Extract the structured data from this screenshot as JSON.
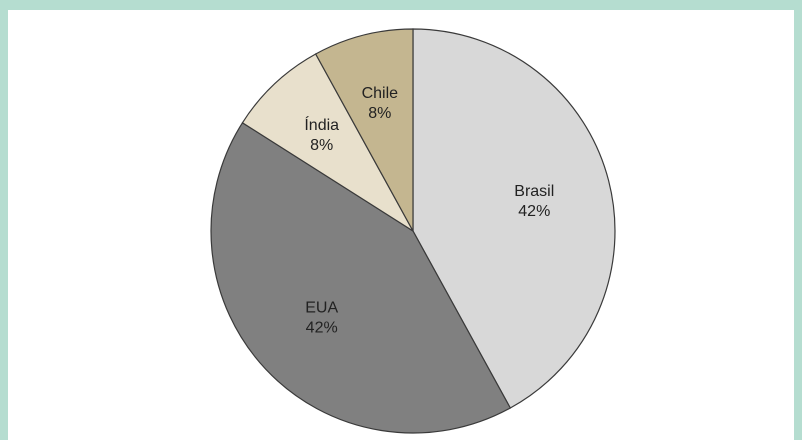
{
  "chart_data": {
    "type": "pie",
    "slices": [
      {
        "label": "Brasil",
        "value": 42,
        "value_text": "42%",
        "color": "#d8d8d8"
      },
      {
        "label": "EUA",
        "value": 42,
        "value_text": "42%",
        "color": "#808080"
      },
      {
        "label": "Índia",
        "value": 8,
        "value_text": "8%",
        "color": "#e8e0cc"
      },
      {
        "label": "Chile",
        "value": 8,
        "value_text": "8%",
        "color": "#c4b690"
      }
    ],
    "start": "top",
    "direction": "clockwise",
    "legend": "none"
  }
}
